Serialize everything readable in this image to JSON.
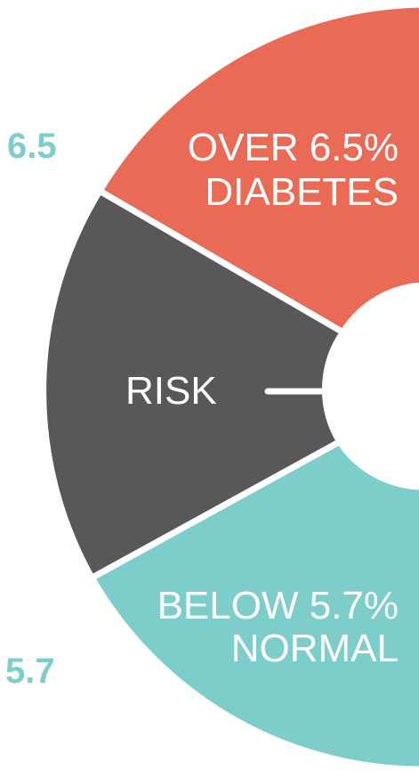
{
  "colors": {
    "diabetes": "#E96B56",
    "risk": "#58585A",
    "normal": "#7DCDCB",
    "threshold_text": "#7DCDCB",
    "separator": "#FFFFFF"
  },
  "segments": {
    "diabetes": {
      "line1": "OVER 6.5%",
      "line2": "DIABETES"
    },
    "risk": {
      "label": "RISK"
    },
    "normal": {
      "line1": "BELOW 5.7%",
      "line2": "NORMAL"
    }
  },
  "thresholds": {
    "upper": "6.5",
    "lower": "5.7"
  }
}
